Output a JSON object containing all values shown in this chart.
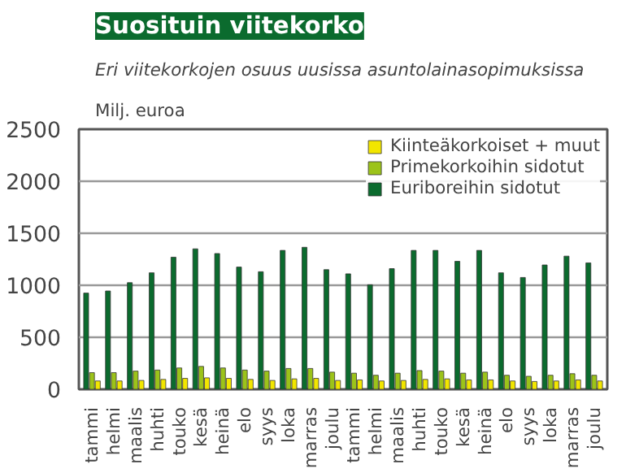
{
  "chart_data": {
    "type": "bar",
    "title": "Suosituin viitekorko",
    "subtitle": "Eri viitekorkojen osuus uusissa asuntolainasopimuksissa",
    "ylabel": "Milj. euroa",
    "categories": [
      "tammi",
      "helmi",
      "maalis",
      "huhti",
      "touko",
      "kesä",
      "heinä",
      "elo",
      "syys",
      "loka",
      "marras",
      "joulu",
      "tammi",
      "helmi",
      "maalis",
      "huhti",
      "touko",
      "kesä",
      "heinä",
      "elo",
      "syys",
      "loka",
      "marras",
      "joulu"
    ],
    "series": [
      {
        "name": "Kiinteäkorkoiset + muut",
        "color": "#f2e600",
        "values": [
          80,
          80,
          85,
          95,
          105,
          110,
          105,
          95,
          85,
          100,
          105,
          85,
          90,
          80,
          85,
          95,
          100,
          90,
          90,
          80,
          75,
          80,
          90,
          80
        ]
      },
      {
        "name": "Primekorkoihin sidotut",
        "color": "#9cc31a",
        "values": [
          160,
          160,
          175,
          185,
          205,
          220,
          205,
          185,
          175,
          200,
          200,
          165,
          155,
          135,
          155,
          180,
          175,
          155,
          165,
          135,
          125,
          135,
          150,
          135
        ]
      },
      {
        "name": "Euriboreihin sidotut",
        "color": "#0b6b2e",
        "values": [
          925,
          945,
          1025,
          1120,
          1270,
          1350,
          1305,
          1175,
          1130,
          1335,
          1365,
          1150,
          1110,
          1005,
          1160,
          1335,
          1335,
          1230,
          1335,
          1120,
          1075,
          1195,
          1280,
          1215
        ]
      }
    ],
    "ylim": [
      0,
      2500
    ],
    "yticks": [
      0,
      500,
      1000,
      1500,
      2000,
      2500
    ],
    "grid": "y",
    "legend": "top right"
  }
}
